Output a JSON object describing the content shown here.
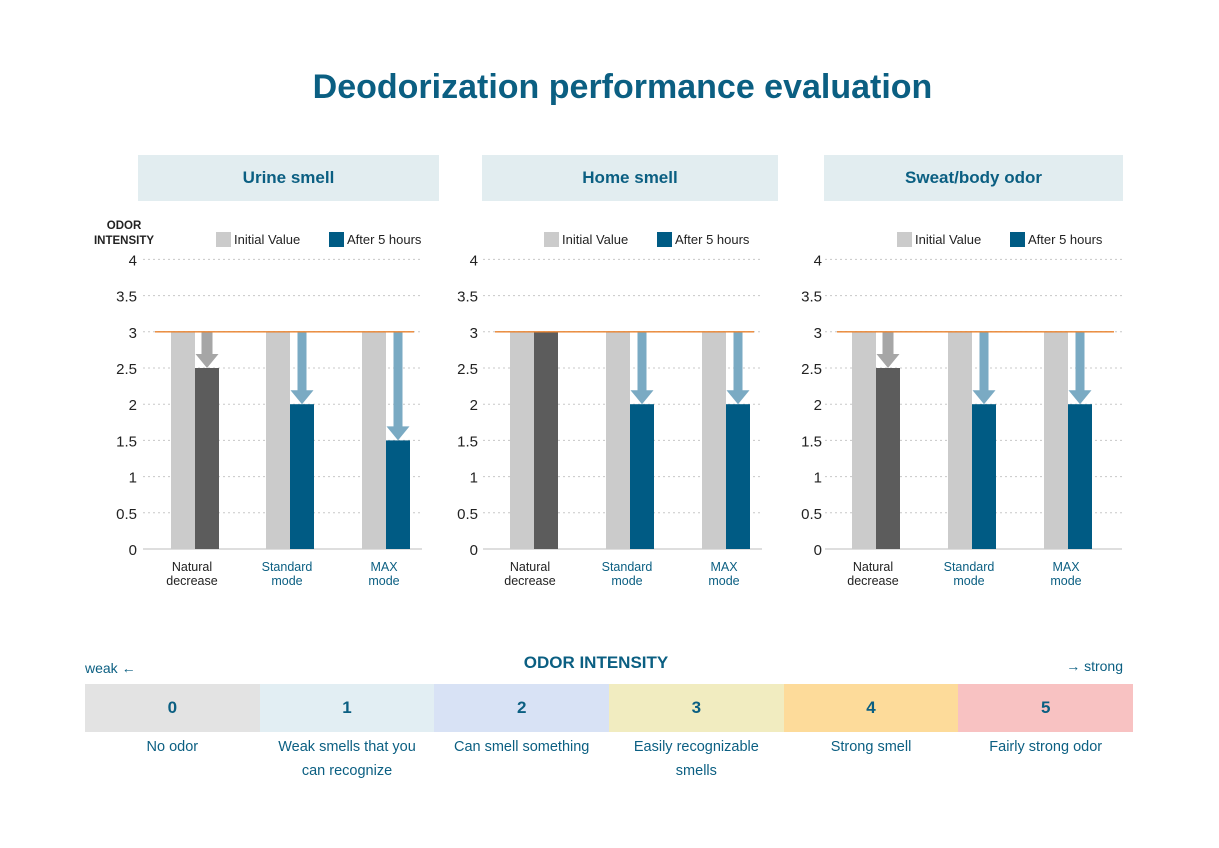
{
  "title": "Deodorization performance evaluation",
  "y_axis_title": "ODOR INTENSITY",
  "legend": {
    "initial": "Initial Value",
    "after": "After 5 hours"
  },
  "colors": {
    "title": "#0b5f82",
    "initial_bar": "#cbcbcb",
    "after_bar": "#005b84",
    "natural_after_bar": "#5c5c5c",
    "arrow": "#7aaac3",
    "natural_arrow": "#a6a6a6",
    "reference_line": "#e8822e",
    "panel_header_bg": "#e2edf0"
  },
  "chart_data": [
    {
      "type": "bar",
      "title": "Urine smell",
      "categories": [
        "Natural decrease",
        "Standard mode",
        "MAX mode"
      ],
      "series": [
        {
          "name": "Initial Value",
          "values": [
            3,
            3,
            3
          ]
        },
        {
          "name": "After 5 hours",
          "values": [
            2.5,
            2,
            1.5
          ]
        }
      ],
      "yticks": [
        "0",
        "0.5",
        "1",
        "1.5",
        "2",
        "2.5",
        "3",
        "3.5",
        "4"
      ],
      "ylim": [
        0,
        4
      ],
      "reference_line": 3,
      "grid": true
    },
    {
      "type": "bar",
      "title": "Home smell",
      "categories": [
        "Natural decrease",
        "Standard mode",
        "MAX mode"
      ],
      "series": [
        {
          "name": "Initial Value",
          "values": [
            3,
            3,
            3
          ]
        },
        {
          "name": "After 5 hours",
          "values": [
            3,
            2,
            2
          ]
        }
      ],
      "yticks": [
        "0",
        "0.5",
        "1",
        "1.5",
        "2",
        "2.5",
        "3",
        "3.5",
        "4"
      ],
      "ylim": [
        0,
        4
      ],
      "reference_line": 3,
      "grid": true
    },
    {
      "type": "bar",
      "title": "Sweat/body odor",
      "categories": [
        "Natural decrease",
        "Standard mode",
        "MAX mode"
      ],
      "series": [
        {
          "name": "Initial Value",
          "values": [
            3,
            3,
            3
          ]
        },
        {
          "name": "After 5 hours",
          "values": [
            2.5,
            2,
            2
          ]
        }
      ],
      "yticks": [
        "0",
        "0.5",
        "1",
        "1.5",
        "2",
        "2.5",
        "3",
        "3.5",
        "4"
      ],
      "ylim": [
        0,
        4
      ],
      "reference_line": 3,
      "grid": true
    }
  ],
  "category_labels": [
    {
      "line1": "Natural",
      "line2": "decrease"
    },
    {
      "line1": "Standard",
      "line2": "mode"
    },
    {
      "line1": "MAX",
      "line2": "mode"
    }
  ],
  "scale": {
    "title": "ODOR INTENSITY",
    "weak_label": "weak ←",
    "strong_label": "→ strong",
    "levels": [
      {
        "value": "0",
        "desc": "No odor",
        "color": "#e3e3e3"
      },
      {
        "value": "1",
        "desc": "Weak smells that you can recognize",
        "color": "#e2eef3"
      },
      {
        "value": "2",
        "desc": "Can smell something",
        "color": "#d8e2f5"
      },
      {
        "value": "3",
        "desc": "Easily recognizable smells",
        "color": "#f1ecc0"
      },
      {
        "value": "4",
        "desc": "Strong smell",
        "color": "#fddb9a"
      },
      {
        "value": "5",
        "desc": "Fairly strong odor",
        "color": "#f8c2c2"
      }
    ]
  }
}
